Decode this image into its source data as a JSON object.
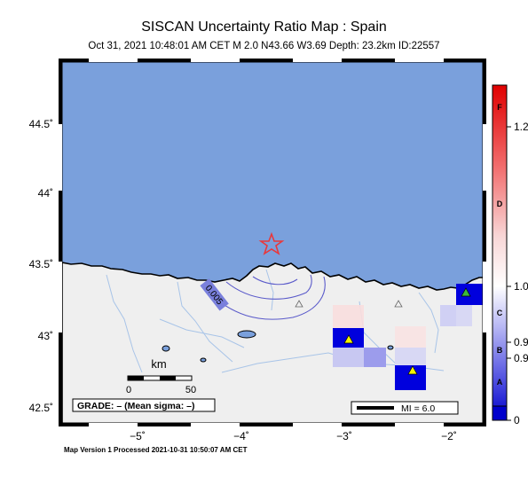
{
  "header": {
    "title": "SISCAN Uncertainty Ratio Map : Spain",
    "subtitle": "Oct 31, 2021 10:48:01 AM CET   M 2.0   N43.66 W3.69   Depth: 23.2km   ID:22557"
  },
  "map": {
    "y_axis_labels": [
      "44.5˚",
      "44˚",
      "43.5˚",
      "43˚",
      "42.5˚"
    ],
    "x_axis_labels": [
      "−5˚",
      "−4˚",
      "−3˚",
      "−2˚"
    ],
    "contour_label": "0.005",
    "scale_bar": {
      "unit": "km",
      "tick_labels": [
        "0",
        "50"
      ]
    },
    "grade_box": "GRADE: – (Mean sigma: –)",
    "legend": {
      "mi_label": "MI = 6.0"
    },
    "colors": {
      "sea": "#7aa0dc",
      "land": "#efefef",
      "epicenter": "#e8383c",
      "station": "#f5f500"
    },
    "epicenter_icon": "star-icon",
    "station_icon": "triangle-icon"
  },
  "colorbar": {
    "grade_letters": [
      "F",
      "D",
      "C",
      "B",
      "A"
    ],
    "value_labels": [
      "1.2",
      "1.0",
      "0.9",
      "0.9",
      "0"
    ]
  },
  "footer": "Map Version 1 Processed 2021-10-31 10:50:07 AM CET"
}
